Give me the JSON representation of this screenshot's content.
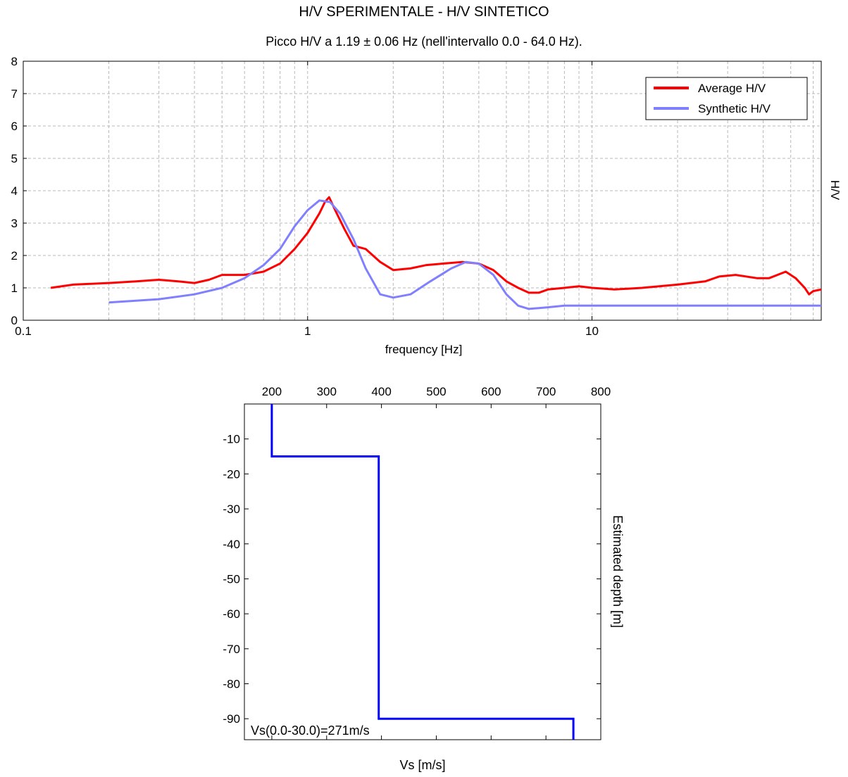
{
  "header": {
    "title": "H/V SPERIMENTALE - H/V SINTETICO",
    "subtitle": "Picco H/V a 1.19 ± 0.06 Hz (nell'intervallo 0.0 - 64.0 Hz)."
  },
  "chart_data": [
    {
      "type": "line",
      "x_scale": "log",
      "xlabel": "frequency [Hz]",
      "ylabel": "H/V",
      "xlim": [
        0.1,
        64
      ],
      "ylim": [
        0,
        8
      ],
      "x_ticks": [
        "0.1",
        "1",
        "10"
      ],
      "y_ticks": [
        "0",
        "1",
        "2",
        "3",
        "4",
        "5",
        "6",
        "7",
        "8"
      ],
      "grid": true,
      "legend_position": "top-right",
      "series": [
        {
          "name": "Average H/V",
          "color": "#ff0000",
          "points": [
            [
              0.125,
              1.0
            ],
            [
              0.15,
              1.1
            ],
            [
              0.2,
              1.15
            ],
            [
              0.25,
              1.2
            ],
            [
              0.3,
              1.25
            ],
            [
              0.35,
              1.2
            ],
            [
              0.4,
              1.15
            ],
            [
              0.45,
              1.25
            ],
            [
              0.5,
              1.4
            ],
            [
              0.6,
              1.4
            ],
            [
              0.7,
              1.5
            ],
            [
              0.8,
              1.75
            ],
            [
              0.9,
              2.2
            ],
            [
              1.0,
              2.7
            ],
            [
              1.1,
              3.3
            ],
            [
              1.15,
              3.65
            ],
            [
              1.19,
              3.8
            ],
            [
              1.25,
              3.4
            ],
            [
              1.35,
              2.8
            ],
            [
              1.45,
              2.3
            ],
            [
              1.6,
              2.2
            ],
            [
              1.8,
              1.8
            ],
            [
              2.0,
              1.55
            ],
            [
              2.3,
              1.6
            ],
            [
              2.6,
              1.7
            ],
            [
              3.0,
              1.75
            ],
            [
              3.5,
              1.8
            ],
            [
              4.0,
              1.75
            ],
            [
              4.5,
              1.55
            ],
            [
              5.0,
              1.2
            ],
            [
              5.5,
              1.0
            ],
            [
              6.0,
              0.85
            ],
            [
              6.5,
              0.85
            ],
            [
              7.0,
              0.95
            ],
            [
              8.0,
              1.0
            ],
            [
              9.0,
              1.05
            ],
            [
              10.0,
              1.0
            ],
            [
              12.0,
              0.95
            ],
            [
              15.0,
              1.0
            ],
            [
              20.0,
              1.1
            ],
            [
              25.0,
              1.2
            ],
            [
              28.0,
              1.35
            ],
            [
              32.0,
              1.4
            ],
            [
              38.0,
              1.3
            ],
            [
              42.0,
              1.3
            ],
            [
              48.0,
              1.5
            ],
            [
              52.0,
              1.3
            ],
            [
              56.0,
              1.0
            ],
            [
              58.0,
              0.8
            ],
            [
              60.0,
              0.9
            ],
            [
              64.0,
              0.95
            ]
          ]
        },
        {
          "name": "Synthetic H/V",
          "color": "#8080ff",
          "points": [
            [
              0.2,
              0.55
            ],
            [
              0.3,
              0.65
            ],
            [
              0.4,
              0.8
            ],
            [
              0.5,
              1.0
            ],
            [
              0.6,
              1.3
            ],
            [
              0.7,
              1.7
            ],
            [
              0.8,
              2.2
            ],
            [
              0.9,
              2.9
            ],
            [
              1.0,
              3.4
            ],
            [
              1.1,
              3.7
            ],
            [
              1.2,
              3.65
            ],
            [
              1.3,
              3.3
            ],
            [
              1.45,
              2.5
            ],
            [
              1.6,
              1.6
            ],
            [
              1.8,
              0.8
            ],
            [
              2.0,
              0.7
            ],
            [
              2.3,
              0.8
            ],
            [
              2.7,
              1.2
            ],
            [
              3.2,
              1.6
            ],
            [
              3.6,
              1.8
            ],
            [
              4.0,
              1.75
            ],
            [
              4.5,
              1.4
            ],
            [
              5.0,
              0.8
            ],
            [
              5.5,
              0.45
            ],
            [
              6.0,
              0.35
            ],
            [
              7.0,
              0.4
            ],
            [
              8.0,
              0.45
            ],
            [
              10.0,
              0.45
            ],
            [
              64.0,
              0.45
            ]
          ]
        }
      ]
    },
    {
      "type": "line",
      "xlabel": "Vs [m/s]",
      "ylabel": "Estimated depth [m]",
      "xlim": [
        150,
        800
      ],
      "ylim": [
        -96,
        0
      ],
      "x_ticks": [
        "200",
        "300",
        "400",
        "500",
        "600",
        "700",
        "800"
      ],
      "y_ticks": [
        "-10",
        "-20",
        "-30",
        "-40",
        "-50",
        "-60",
        "-70",
        "-80",
        "-90"
      ],
      "grid": false,
      "annotation": "Vs(0.0-30.0)=271m/s",
      "series": [
        {
          "color": "#0000ff",
          "points": [
            [
              200,
              0
            ],
            [
              200,
              -15
            ],
            [
              395,
              -15
            ],
            [
              395,
              -90
            ],
            [
              750,
              -90
            ],
            [
              750,
              -96
            ]
          ]
        }
      ]
    }
  ]
}
